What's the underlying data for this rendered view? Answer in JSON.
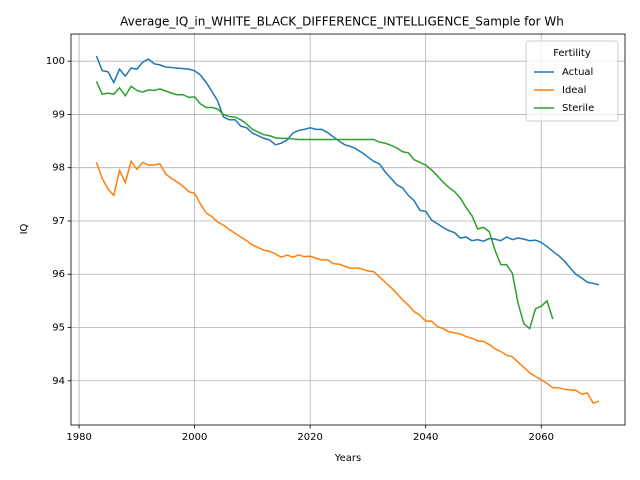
{
  "chart_data": {
    "type": "line",
    "title": "Average_IQ_in_WHITE_BLACK_DIFFERENCE_INTELLIGENCE_Sample for Wh",
    "xlabel": "Years",
    "ylabel": "IQ",
    "x": [
      1983,
      1984,
      1985,
      1986,
      1987,
      1988,
      1989,
      1990,
      1991,
      1992,
      1993,
      1994,
      1995,
      1996,
      1997,
      1998,
      1999,
      2000,
      2001,
      2002,
      2003,
      2004,
      2005,
      2006,
      2007,
      2008,
      2009,
      2010,
      2011,
      2012,
      2013,
      2014,
      2015,
      2016,
      2017,
      2018,
      2019,
      2020,
      2021,
      2022,
      2023,
      2024,
      2025,
      2026,
      2027,
      2028,
      2029,
      2030,
      2031,
      2032,
      2033,
      2034,
      2035,
      2036,
      2037,
      2038,
      2039,
      2040,
      2041,
      2042,
      2043,
      2044,
      2045,
      2046,
      2047,
      2048,
      2049,
      2050,
      2051,
      2052,
      2053,
      2054,
      2055,
      2056,
      2057,
      2058,
      2059,
      2060,
      2061,
      2062,
      2063,
      2064,
      2065,
      2066,
      2067,
      2068,
      2069,
      2070
    ],
    "series": [
      {
        "name": "Actual",
        "color": "#1f77b4",
        "values": [
          100.1,
          99.82,
          99.8,
          99.6,
          99.85,
          99.72,
          99.87,
          99.85,
          99.98,
          100.04,
          99.95,
          99.93,
          99.89,
          99.88,
          99.87,
          99.86,
          99.85,
          99.82,
          99.74,
          99.6,
          99.43,
          99.25,
          98.95,
          98.9,
          98.9,
          98.78,
          98.75,
          98.65,
          98.6,
          98.55,
          98.52,
          98.43,
          98.46,
          98.52,
          98.65,
          98.7,
          98.72,
          98.75,
          98.72,
          98.72,
          98.66,
          98.58,
          98.5,
          98.43,
          98.4,
          98.35,
          98.28,
          98.2,
          98.12,
          98.07,
          97.92,
          97.8,
          97.68,
          97.62,
          97.48,
          97.38,
          97.2,
          97.18,
          97.02,
          96.95,
          96.88,
          96.82,
          96.78,
          96.68,
          96.7,
          96.63,
          96.65,
          96.62,
          96.67,
          96.66,
          96.63,
          96.7,
          96.65,
          96.68,
          96.66,
          96.63,
          96.64,
          96.6,
          96.52,
          96.43,
          96.35,
          96.25,
          96.12,
          96.0,
          95.93,
          95.85,
          95.83,
          95.8
        ]
      },
      {
        "name": "Ideal",
        "color": "#ff7f0e",
        "values": [
          98.1,
          97.8,
          97.6,
          97.48,
          97.95,
          97.72,
          98.12,
          97.97,
          98.1,
          98.05,
          98.05,
          98.07,
          97.88,
          97.8,
          97.73,
          97.65,
          97.55,
          97.52,
          97.32,
          97.15,
          97.08,
          96.98,
          96.92,
          96.84,
          96.77,
          96.7,
          96.63,
          96.55,
          96.5,
          96.45,
          96.43,
          96.38,
          96.32,
          96.36,
          96.32,
          96.36,
          96.33,
          96.34,
          96.3,
          96.27,
          96.27,
          96.2,
          96.19,
          96.15,
          96.11,
          96.12,
          96.1,
          96.06,
          96.05,
          95.95,
          95.85,
          95.75,
          95.64,
          95.52,
          95.42,
          95.3,
          95.23,
          95.12,
          95.12,
          95.02,
          94.98,
          94.92,
          94.9,
          94.88,
          94.83,
          94.8,
          94.75,
          94.74,
          94.68,
          94.6,
          94.55,
          94.48,
          94.45,
          94.35,
          94.25,
          94.15,
          94.08,
          94.02,
          93.95,
          93.87,
          93.87,
          93.84,
          93.83,
          93.82,
          93.75,
          93.77,
          93.58,
          93.62
        ]
      },
      {
        "name": "Sterile",
        "color": "#2ca02c",
        "values": [
          99.62,
          99.38,
          99.4,
          99.38,
          99.5,
          99.35,
          99.53,
          99.45,
          99.42,
          99.46,
          99.45,
          99.48,
          99.44,
          99.4,
          99.37,
          99.37,
          99.32,
          99.33,
          99.2,
          99.13,
          99.13,
          99.1,
          99.0,
          98.96,
          98.95,
          98.9,
          98.82,
          98.72,
          98.67,
          98.62,
          98.6,
          98.56,
          98.55,
          98.55,
          98.54,
          98.53,
          98.53,
          98.53,
          98.53,
          98.53,
          98.53,
          98.53,
          98.53,
          98.53,
          98.53,
          98.53,
          98.53,
          98.53,
          98.53,
          98.48,
          98.46,
          98.42,
          98.37,
          98.3,
          98.28,
          98.15,
          98.1,
          98.05,
          97.96,
          97.85,
          97.73,
          97.63,
          97.55,
          97.43,
          97.25,
          97.1,
          96.85,
          96.88,
          96.8,
          96.45,
          96.18,
          96.18,
          96.02,
          95.45,
          95.07,
          94.98,
          95.35,
          95.4,
          95.5,
          95.16,
          null,
          null,
          null,
          null,
          null,
          null,
          null,
          null
        ]
      }
    ],
    "xlim": [
      1978.6,
      2074.5
    ],
    "ylim": [
      93.17,
      100.51
    ],
    "xticks": [
      1980,
      2000,
      2020,
      2040,
      2060
    ],
    "yticks": [
      94,
      95,
      96,
      97,
      98,
      99,
      100
    ],
    "grid": true,
    "legend_title": "Fertility",
    "legend": "upper right"
  }
}
